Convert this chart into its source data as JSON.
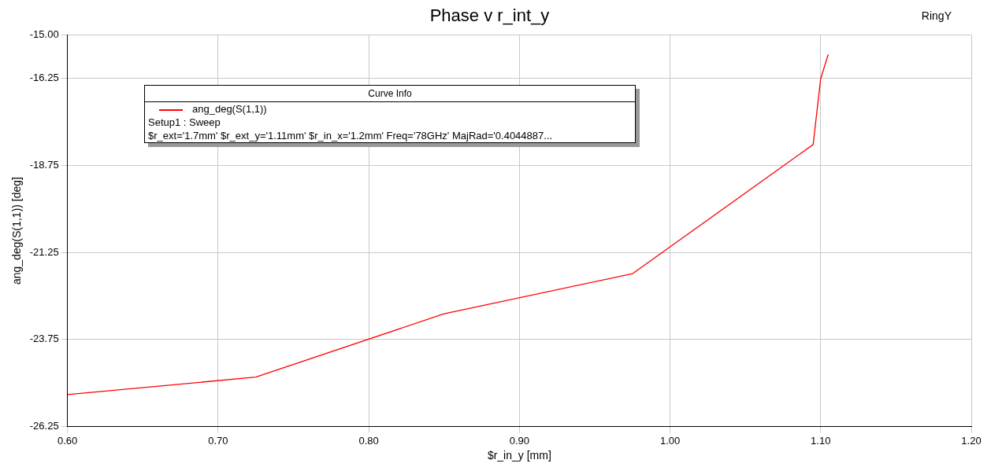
{
  "chart_data": {
    "type": "line",
    "title": "Phase v r_int_y",
    "xlabel": "$r_in_y [mm]",
    "ylabel": "ang_deg(S(1,1)) [deg]",
    "legend_title": "Curve Info",
    "xlim": [
      0.6,
      1.2
    ],
    "xticks": [
      {
        "value": 0.6,
        "label": "0.60"
      },
      {
        "value": 0.7,
        "label": "0.70"
      },
      {
        "value": 0.8,
        "label": "0.80"
      },
      {
        "value": 0.9,
        "label": "0.90"
      },
      {
        "value": 1.0,
        "label": "1.00"
      },
      {
        "value": 1.1,
        "label": "1.10"
      },
      {
        "value": 1.2,
        "label": "1.20"
      }
    ],
    "ylim": [
      -26.25,
      -15
    ],
    "yticks": [
      {
        "value": -26.25,
        "label": "-26.25"
      },
      {
        "value": -23.75,
        "label": "-23.75"
      },
      {
        "value": -21.25,
        "label": "-21.25"
      },
      {
        "value": -18.75,
        "label": "-18.75"
      },
      {
        "value": -16.25,
        "label": "-16.25"
      },
      {
        "value": -15,
        "label": "-15.00"
      }
    ],
    "grid": true,
    "legend": "top left",
    "marker": "none",
    "line_style": "solid",
    "series": [
      {
        "name": "ang_deg(S(1,1))",
        "color": "#ff0000",
        "x": [
          0.6,
          0.725,
          0.85,
          0.975,
          1.095,
          1.1,
          1.105
        ],
        "values": [
          -25.33,
          -24.83,
          -23.01,
          -21.86,
          -18.15,
          -16.26,
          -15.56
        ]
      }
    ],
    "annotations": [
      "Setup1 : Sweep",
      "$r_ext='1.7mm' $r_ext_y='1.11mm' $r_in_x='1.2mm' Freq='78GHz' MajRad='0.4044887...",
      "RingY"
    ]
  }
}
